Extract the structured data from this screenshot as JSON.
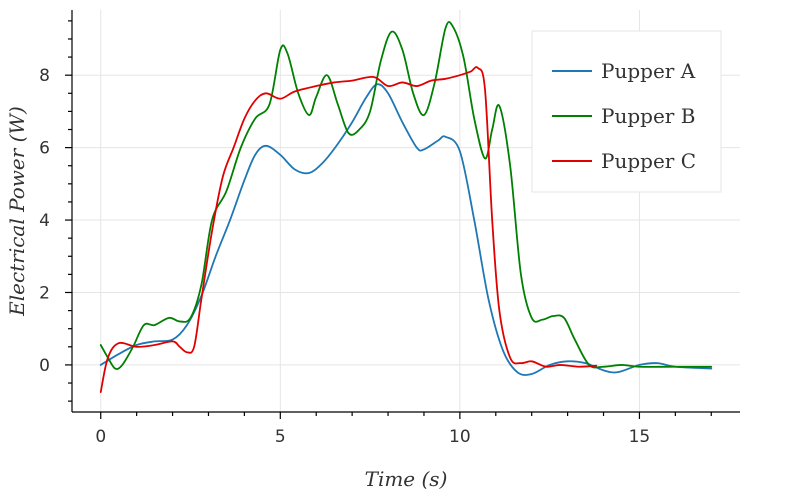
{
  "chart_data": {
    "type": "line",
    "xlabel": "Time (s)",
    "ylabel": "Electrical Power (W)",
    "xlim": [
      -0.8,
      17.8
    ],
    "ylim": [
      -1.3,
      9.8
    ],
    "xticks": [
      0,
      5,
      10,
      15
    ],
    "yticks": [
      0,
      2,
      4,
      6,
      8
    ],
    "x_minor_step": 1,
    "y_minor_step": 0.5,
    "grid": true,
    "legend_position": "top-right",
    "series": [
      {
        "name": "Pupper A",
        "color": "#1f77b4",
        "points": [
          [
            0,
            0.0
          ],
          [
            0.5,
            0.3
          ],
          [
            1.0,
            0.55
          ],
          [
            1.5,
            0.65
          ],
          [
            2.0,
            0.7
          ],
          [
            2.4,
            1.1
          ],
          [
            2.8,
            1.9
          ],
          [
            3.2,
            3.0
          ],
          [
            3.6,
            4.0
          ],
          [
            4.0,
            5.1
          ],
          [
            4.3,
            5.8
          ],
          [
            4.6,
            6.05
          ],
          [
            5.0,
            5.8
          ],
          [
            5.4,
            5.4
          ],
          [
            5.8,
            5.3
          ],
          [
            6.2,
            5.6
          ],
          [
            6.6,
            6.1
          ],
          [
            7.0,
            6.7
          ],
          [
            7.4,
            7.4
          ],
          [
            7.7,
            7.75
          ],
          [
            8.0,
            7.5
          ],
          [
            8.4,
            6.7
          ],
          [
            8.8,
            6.0
          ],
          [
            9.0,
            5.95
          ],
          [
            9.4,
            6.2
          ],
          [
            9.6,
            6.3
          ],
          [
            10.0,
            5.9
          ],
          [
            10.4,
            4.0
          ],
          [
            10.8,
            1.8
          ],
          [
            11.2,
            0.4
          ],
          [
            11.6,
            -0.2
          ],
          [
            12.0,
            -0.25
          ],
          [
            12.5,
            0.0
          ],
          [
            13.0,
            0.1
          ],
          [
            13.5,
            0.05
          ],
          [
            14.0,
            -0.15
          ],
          [
            14.4,
            -0.2
          ],
          [
            15.0,
            0.0
          ],
          [
            15.5,
            0.05
          ],
          [
            16.0,
            -0.05
          ],
          [
            17.0,
            -0.1
          ]
        ]
      },
      {
        "name": "Pupper B",
        "color": "#008000",
        "points": [
          [
            0,
            0.55
          ],
          [
            0.2,
            0.2
          ],
          [
            0.4,
            -0.1
          ],
          [
            0.6,
            0.0
          ],
          [
            0.9,
            0.5
          ],
          [
            1.2,
            1.1
          ],
          [
            1.5,
            1.1
          ],
          [
            1.9,
            1.3
          ],
          [
            2.2,
            1.2
          ],
          [
            2.5,
            1.3
          ],
          [
            2.8,
            2.2
          ],
          [
            3.1,
            4.0
          ],
          [
            3.5,
            4.8
          ],
          [
            3.9,
            6.0
          ],
          [
            4.3,
            6.8
          ],
          [
            4.7,
            7.2
          ],
          [
            5.0,
            8.7
          ],
          [
            5.2,
            8.6
          ],
          [
            5.5,
            7.5
          ],
          [
            5.8,
            6.9
          ],
          [
            6.0,
            7.4
          ],
          [
            6.3,
            8.0
          ],
          [
            6.6,
            7.2
          ],
          [
            6.9,
            6.4
          ],
          [
            7.2,
            6.5
          ],
          [
            7.5,
            7.0
          ],
          [
            7.8,
            8.4
          ],
          [
            8.1,
            9.2
          ],
          [
            8.4,
            8.7
          ],
          [
            8.7,
            7.5
          ],
          [
            9.0,
            6.9
          ],
          [
            9.3,
            7.8
          ],
          [
            9.6,
            9.3
          ],
          [
            9.8,
            9.35
          ],
          [
            10.1,
            8.5
          ],
          [
            10.4,
            6.8
          ],
          [
            10.7,
            5.7
          ],
          [
            10.9,
            6.5
          ],
          [
            11.1,
            7.15
          ],
          [
            11.4,
            5.5
          ],
          [
            11.7,
            2.5
          ],
          [
            12.0,
            1.3
          ],
          [
            12.3,
            1.25
          ],
          [
            12.6,
            1.35
          ],
          [
            12.9,
            1.3
          ],
          [
            13.2,
            0.7
          ],
          [
            13.6,
            0.0
          ],
          [
            14.0,
            -0.05
          ],
          [
            14.5,
            0.0
          ],
          [
            15.0,
            -0.05
          ],
          [
            16.0,
            -0.05
          ],
          [
            17.0,
            -0.05
          ]
        ]
      },
      {
        "name": "Pupper C",
        "color": "#e00000",
        "points": [
          [
            0,
            -0.75
          ],
          [
            0.2,
            0.2
          ],
          [
            0.5,
            0.6
          ],
          [
            1.0,
            0.5
          ],
          [
            1.5,
            0.55
          ],
          [
            2.0,
            0.65
          ],
          [
            2.2,
            0.5
          ],
          [
            2.4,
            0.35
          ],
          [
            2.6,
            0.5
          ],
          [
            2.8,
            1.8
          ],
          [
            3.1,
            3.7
          ],
          [
            3.4,
            5.2
          ],
          [
            3.7,
            6.0
          ],
          [
            4.0,
            6.8
          ],
          [
            4.3,
            7.3
          ],
          [
            4.6,
            7.5
          ],
          [
            5.0,
            7.35
          ],
          [
            5.4,
            7.55
          ],
          [
            6.0,
            7.7
          ],
          [
            6.5,
            7.8
          ],
          [
            7.0,
            7.85
          ],
          [
            7.6,
            7.95
          ],
          [
            8.0,
            7.7
          ],
          [
            8.4,
            7.8
          ],
          [
            8.8,
            7.7
          ],
          [
            9.2,
            7.85
          ],
          [
            9.6,
            7.9
          ],
          [
            10.0,
            8.0
          ],
          [
            10.3,
            8.1
          ],
          [
            10.5,
            8.2
          ],
          [
            10.7,
            7.6
          ],
          [
            10.9,
            4.0
          ],
          [
            11.1,
            1.5
          ],
          [
            11.4,
            0.2
          ],
          [
            11.7,
            0.05
          ],
          [
            12.0,
            0.1
          ],
          [
            12.4,
            -0.05
          ],
          [
            12.8,
            0.0
          ],
          [
            13.3,
            -0.05
          ],
          [
            13.8,
            -0.02
          ]
        ]
      }
    ]
  }
}
